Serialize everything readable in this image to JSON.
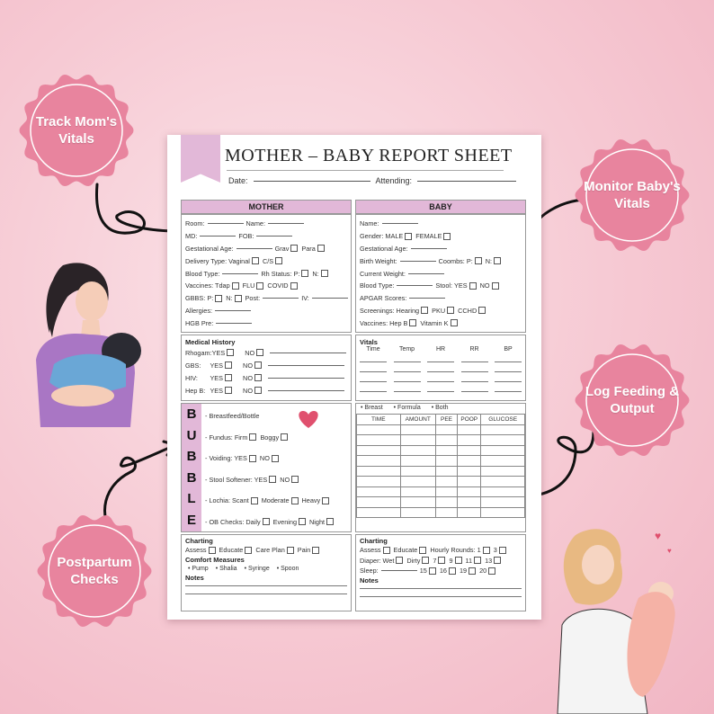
{
  "colors": {
    "accent": "#e2b8d8",
    "badge": "#e8849e",
    "background": "#f6c9d3"
  },
  "badges": [
    {
      "id": "mom",
      "text": "Track Mom's Vitals"
    },
    {
      "id": "baby",
      "text": "Monitor Baby's Vitals"
    },
    {
      "id": "feed",
      "text": "Log Feeding & Output"
    },
    {
      "id": "post",
      "text": "Postpartum Checks"
    }
  ],
  "sheet": {
    "title": "MOTHER – BABY REPORT SHEET",
    "date_label": "Date:",
    "attending_label": "Attending:",
    "mother": {
      "header": "MOTHER",
      "rows": [
        [
          {
            "t": "Room:",
            "f": "line"
          },
          {
            "t": "Name:",
            "f": "line"
          }
        ],
        [
          {
            "t": "MD:",
            "f": "line"
          },
          {
            "t": "FOB:",
            "f": "line"
          }
        ],
        [
          {
            "t": "Gestational Age:",
            "f": "line"
          },
          {
            "t": "Grav",
            "f": "box"
          },
          {
            "t": "Para",
            "f": "box"
          }
        ],
        [
          {
            "t": "Delivery Type:  Vaginal",
            "f": "box"
          },
          {
            "t": "C/S",
            "f": "box"
          }
        ],
        [
          {
            "t": "Blood Type:",
            "f": "line"
          },
          {
            "t": "Rh Status:   P:",
            "f": "box"
          },
          {
            "t": "N:",
            "f": "box"
          }
        ],
        [
          {
            "t": "Vaccines: Tdap",
            "f": "box"
          },
          {
            "t": "FLU",
            "f": "box"
          },
          {
            "t": "COVID",
            "f": "box"
          }
        ],
        [
          {
            "t": "GBBS: P:",
            "f": "box"
          },
          {
            "t": "N:",
            "f": "box"
          },
          {
            "t": "Post:",
            "f": "line"
          },
          {
            "t": "IV:",
            "f": "line"
          }
        ],
        [
          {
            "t": "Allergies:",
            "f": "line"
          }
        ],
        [
          {
            "t": "HGB Pre:",
            "f": "line"
          }
        ]
      ]
    },
    "baby": {
      "header": "BABY",
      "rows": [
        [
          {
            "t": "Name:",
            "f": "line"
          }
        ],
        [
          {
            "t": "Gender: MALE",
            "f": "box"
          },
          {
            "t": "FEMALE",
            "f": "box"
          }
        ],
        [
          {
            "t": "Gestational Age:",
            "f": "line"
          }
        ],
        [
          {
            "t": "Birth Weight:",
            "f": "line"
          },
          {
            "t": "Coombs: P:",
            "f": "box"
          },
          {
            "t": "N:",
            "f": "box"
          }
        ],
        [
          {
            "t": "Current Weight:",
            "f": "line"
          }
        ],
        [
          {
            "t": "Blood Type:",
            "f": "line"
          },
          {
            "t": "Stool:  YES",
            "f": "box"
          },
          {
            "t": "NO",
            "f": "box"
          }
        ],
        [
          {
            "t": "APGAR Scores:",
            "f": "line"
          }
        ],
        [
          {
            "t": "Screenings:  Hearing",
            "f": "box"
          },
          {
            "t": "PKU",
            "f": "box"
          },
          {
            "t": "CCHD",
            "f": "box"
          }
        ],
        [
          {
            "t": "Vaccines:   Hep B",
            "f": "box"
          },
          {
            "t": "Vitamin K",
            "f": "box"
          }
        ]
      ]
    },
    "medical_history": {
      "title": "Medical History",
      "items": [
        "Rhogam:",
        "GBS:",
        "HIV:",
        "Hep B:"
      ],
      "yes": "YES",
      "no": "NO"
    },
    "vitals": {
      "title": "Vitals",
      "columns": [
        "Time",
        "Temp",
        "HR",
        "RR",
        "BP"
      ],
      "baby_blocks": "BABY"
    },
    "bubble": {
      "letters": [
        "B",
        "U",
        "B",
        "B",
        "L",
        "E"
      ],
      "rows": [
        [
          {
            "t": "- Breastfeed/Bottle"
          }
        ],
        [
          {
            "t": "- Fundus:  Firm",
            "f": "box"
          },
          {
            "t": "Boggy",
            "f": "box"
          }
        ],
        [
          {
            "t": "- Voiding:  YES",
            "f": "box"
          },
          {
            "t": "NO",
            "f": "box"
          }
        ],
        [
          {
            "t": "- Stool Softener: YES",
            "f": "box"
          },
          {
            "t": "NO",
            "f": "box"
          }
        ],
        [
          {
            "t": "- Lochia:  Scant",
            "f": "box"
          },
          {
            "t": "Moderate",
            "f": "box"
          },
          {
            "t": "Heavy",
            "f": "box"
          }
        ],
        [
          {
            "t": "- OB Checks: Daily",
            "f": "box"
          },
          {
            "t": "Evening",
            "f": "box"
          },
          {
            "t": "Night",
            "f": "box"
          }
        ]
      ],
      "heart_text": "MOM"
    },
    "feeding": {
      "options": [
        "Breast",
        "Formula",
        "Both"
      ],
      "columns": [
        "TIME",
        "AMOUNT",
        "PEE",
        "POOP",
        "GLUCOSE"
      ]
    },
    "charting_mother": {
      "title": "Charting",
      "row": [
        {
          "t": "Assess",
          "f": "box"
        },
        {
          "t": "Educate",
          "f": "box"
        },
        {
          "t": "Care Plan",
          "f": "box"
        },
        {
          "t": "Pain",
          "f": "box"
        }
      ],
      "comfort_title": "Comfort Measures",
      "comfort": [
        "Pump",
        "Shalia",
        "Syringe",
        "Spoon"
      ],
      "notes": "Notes"
    },
    "charting_baby": {
      "title": "Charting",
      "rows": [
        [
          {
            "t": "Assess",
            "f": "box"
          },
          {
            "t": "Educate",
            "f": "box"
          },
          {
            "t": "Hourly Rounds: 1",
            "f": "box"
          },
          {
            "t": "3",
            "f": "box"
          }
        ],
        [
          {
            "t": "Diaper: Wet",
            "f": "box"
          },
          {
            "t": "Dirty",
            "f": "box"
          },
          {
            "t": "7",
            "f": "box"
          },
          {
            "t": "9",
            "f": "box"
          },
          {
            "t": "11",
            "f": "box"
          },
          {
            "t": "13",
            "f": "box"
          }
        ],
        [
          {
            "t": "Sleep:",
            "f": "line"
          },
          {
            "t": "15",
            "f": "box"
          },
          {
            "t": "16",
            "f": "box"
          },
          {
            "t": "19",
            "f": "box"
          },
          {
            "t": "20",
            "f": "box"
          }
        ]
      ],
      "notes": "Notes"
    }
  }
}
